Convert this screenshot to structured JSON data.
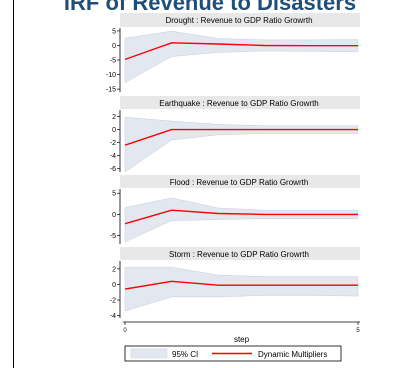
{
  "slide_title": "IRF of Revenue to Disasters",
  "x_axis": {
    "label": "step",
    "ticks": [
      0,
      5
    ],
    "range": [
      0,
      5
    ]
  },
  "legend": {
    "position": "bottom",
    "items": [
      {
        "label": "95% CI",
        "kind": "band",
        "color": "#e3e8f0"
      },
      {
        "label": "Dynamic Multipliers",
        "kind": "line",
        "color": "#ff0000"
      }
    ]
  },
  "colors": {
    "ci_band": "#e3e8f0",
    "ci_edge": "#c5cfdd",
    "multiplier_line": "#ff0000",
    "panel_header": "#e8e8e8"
  },
  "chart_data": [
    {
      "type": "area",
      "title": "Drought : Revenue to GDP Ratio Growrth",
      "x": [
        0,
        1,
        2,
        3,
        4,
        5
      ],
      "ylim": [
        -16,
        6
      ],
      "yticks": [
        5,
        0,
        -5,
        -10,
        -15
      ],
      "series": [
        {
          "name": "Dynamic Multipliers",
          "values": [
            -4.8,
            0.9,
            0.5,
            0.0,
            -0.1,
            -0.1
          ]
        },
        {
          "name": "95% CI",
          "lower": [
            -12.8,
            -3.8,
            -2.4,
            -1.9,
            -2.0,
            -2.2
          ],
          "upper": [
            2.5,
            4.9,
            2.4,
            1.9,
            1.9,
            2.0
          ]
        }
      ]
    },
    {
      "type": "area",
      "title": "Earthquake : Revenue to GDP Ratio Growrth",
      "x": [
        0,
        1,
        2,
        3,
        4,
        5
      ],
      "ylim": [
        -6.5,
        3
      ],
      "yticks": [
        2,
        0,
        -2,
        -4,
        -6
      ],
      "series": [
        {
          "name": "Dynamic Multipliers",
          "values": [
            -2.4,
            0.0,
            0.0,
            0.0,
            0.0,
            0.0
          ]
        },
        {
          "name": "95% CI",
          "lower": [
            -6.5,
            -1.6,
            -0.8,
            -0.6,
            -0.6,
            -0.6
          ],
          "upper": [
            1.9,
            1.3,
            0.8,
            0.6,
            0.6,
            0.6
          ]
        }
      ]
    },
    {
      "type": "area",
      "title": "Flood : Revenue to GDP Ratio Growrth",
      "x": [
        0,
        1,
        2,
        3,
        4,
        5
      ],
      "ylim": [
        -7,
        6
      ],
      "yticks": [
        5,
        0,
        -5
      ],
      "series": [
        {
          "name": "Dynamic Multipliers",
          "values": [
            -2.2,
            1.0,
            0.2,
            0.0,
            0.0,
            0.0
          ]
        },
        {
          "name": "95% CI",
          "lower": [
            -6.5,
            -1.5,
            -1.2,
            -1.0,
            -1.0,
            -1.0
          ],
          "upper": [
            1.6,
            3.9,
            1.5,
            1.0,
            1.0,
            1.0
          ]
        }
      ]
    },
    {
      "type": "area",
      "title": "Storm : Revenue to GDP Ratio Growrth",
      "x": [
        0,
        1,
        2,
        3,
        4,
        5
      ],
      "ylim": [
        -4.3,
        3
      ],
      "yticks": [
        2,
        0,
        -2,
        -4
      ],
      "series": [
        {
          "name": "Dynamic Multipliers",
          "values": [
            -0.6,
            0.4,
            -0.1,
            -0.1,
            -0.1,
            -0.1
          ]
        },
        {
          "name": "95% CI",
          "lower": [
            -3.4,
            -1.6,
            -1.6,
            -1.4,
            -1.4,
            -1.5
          ],
          "upper": [
            2.2,
            2.2,
            1.2,
            1.0,
            1.0,
            1.0
          ]
        }
      ]
    }
  ]
}
